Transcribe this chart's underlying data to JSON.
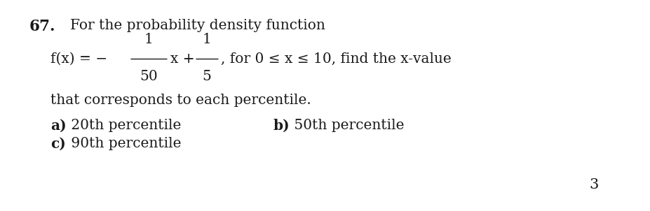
{
  "background_color": "#ffffff",
  "number": "67.",
  "line1": "For the probability density function",
  "line3": "that corresponds to each percentile.",
  "item_a_bold": "a)",
  "item_a_rest": " 20th percentile",
  "item_b_bold": "b)",
  "item_b_rest": " 50th percentile",
  "item_c_bold": "c)",
  "item_c_rest": " 90th percentile",
  "footnote": "3",
  "text_color": "#1a1a1a",
  "font_size_number": 15.5,
  "font_size_body": 14.5,
  "font_size_footnote": 15
}
